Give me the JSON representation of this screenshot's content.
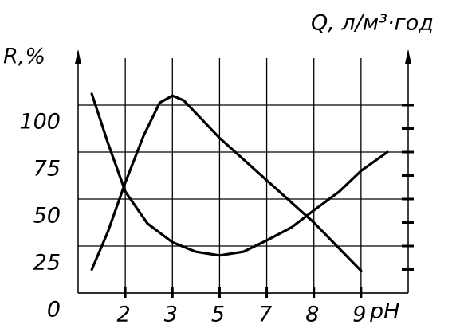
{
  "chart_data": {
    "type": "line",
    "ylabel": "R,%",
    "y2label": "Q, л/м³·год",
    "xlabel": "pH",
    "xlim": [
      0,
      7
    ],
    "xticks": [
      {
        "value": 1,
        "label": "2"
      },
      {
        "value": 2,
        "label": "3"
      },
      {
        "value": 3,
        "label": "5"
      },
      {
        "value": 4,
        "label": "7"
      },
      {
        "value": 5,
        "label": "8"
      },
      {
        "value": 6,
        "label": "9"
      }
    ],
    "ylim": [
      0,
      125
    ],
    "yticks": [
      0,
      25,
      50,
      75,
      100
    ],
    "y2lim": [
      0,
      10
    ],
    "y2ticks": [
      1,
      2,
      3,
      4,
      5,
      6,
      7,
      8
    ],
    "grid": true,
    "series": [
      {
        "color": "#000000",
        "x": [
          0.29,
          0.63,
          1,
          1.47,
          2,
          2.49,
          3,
          3.51,
          4,
          4.53,
          5,
          5.54,
          6,
          6.56
        ],
        "values": [
          106,
          80,
          54,
          37,
          27,
          22,
          20,
          22,
          28,
          35,
          44,
          54,
          65,
          75
        ]
      },
      {
        "color": "#000000",
        "axis": "y2",
        "x": [
          0.29,
          0.63,
          1,
          1.39,
          1.73,
          2,
          2.24,
          3,
          4,
          5,
          6
        ],
        "values": [
          1.0,
          2.6,
          4.7,
          6.7,
          8.1,
          8.4,
          8.2,
          6.6,
          4.8,
          3.0,
          0.95
        ]
      }
    ]
  }
}
